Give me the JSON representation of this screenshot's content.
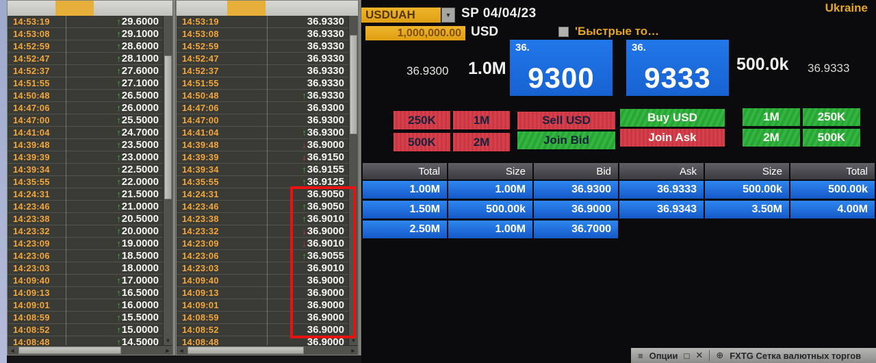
{
  "icons": {
    "dropdown": "▼",
    "arrow_up": "↑",
    "arrow_down": "↓",
    "scroll_left": "◄",
    "scroll_right": "►",
    "scroll_down": "▼",
    "menu": "≡",
    "maximize": "□",
    "close": "✕",
    "move": "⊕"
  },
  "colors": {
    "amber": "#e7a71c",
    "quote_blue": "#1c6ede",
    "depth_blue": "#1d74e4",
    "button_red": "#d5404c",
    "button_green": "#2fb13c",
    "annotation_red": "#e81212",
    "panel_bg": "#3b3b35",
    "time_amber": "#f2a53a"
  },
  "left_panel": {
    "rows": [
      {
        "t": "14:53:19",
        "v": "29.6000",
        "d": "up"
      },
      {
        "t": "14:53:08",
        "v": "29.1000",
        "d": "up"
      },
      {
        "t": "14:52:59",
        "v": "28.6000",
        "d": "up"
      },
      {
        "t": "14:52:47",
        "v": "28.1000",
        "d": "up"
      },
      {
        "t": "14:52:37",
        "v": "27.6000",
        "d": "up"
      },
      {
        "t": "14:51:55",
        "v": "27.1000",
        "d": "up"
      },
      {
        "t": "14:50:48",
        "v": "26.5000",
        "d": "up"
      },
      {
        "t": "14:47:06",
        "v": "26.0000",
        "d": "up"
      },
      {
        "t": "14:47:00",
        "v": "25.5000",
        "d": "up"
      },
      {
        "t": "14:41:04",
        "v": "24.7000",
        "d": "up"
      },
      {
        "t": "14:39:48",
        "v": "23.5000",
        "d": "up"
      },
      {
        "t": "14:39:39",
        "v": "23.0000",
        "d": "up"
      },
      {
        "t": "14:39:34",
        "v": "22.5000",
        "d": "up"
      },
      {
        "t": "14:35:55",
        "v": "22.0000",
        "d": "up"
      },
      {
        "t": "14:24:31",
        "v": "21.5000",
        "d": "up"
      },
      {
        "t": "14:23:46",
        "v": "21.0000",
        "d": "up"
      },
      {
        "t": "14:23:38",
        "v": "20.5000",
        "d": "up"
      },
      {
        "t": "14:23:32",
        "v": "20.0000",
        "d": "up"
      },
      {
        "t": "14:23:09",
        "v": "19.0000",
        "d": "up"
      },
      {
        "t": "14:23:06",
        "v": "18.5000",
        "d": "up"
      },
      {
        "t": "14:23:03",
        "v": "18.0000",
        "d": "none"
      },
      {
        "t": "14:09:40",
        "v": "17.0000",
        "d": "up"
      },
      {
        "t": "14:09:13",
        "v": "16.5000",
        "d": "up"
      },
      {
        "t": "14:09:01",
        "v": "16.0000",
        "d": "up"
      },
      {
        "t": "14:08:59",
        "v": "15.5000",
        "d": "up"
      },
      {
        "t": "14:08:52",
        "v": "15.0000",
        "d": "up"
      },
      {
        "t": "14:08:48",
        "v": "14.5000",
        "d": "up"
      }
    ]
  },
  "middle_panel": {
    "rows": [
      {
        "t": "14:53:19",
        "v": "36.9330",
        "d": "none"
      },
      {
        "t": "14:53:08",
        "v": "36.9330",
        "d": "none"
      },
      {
        "t": "14:52:59",
        "v": "36.9330",
        "d": "none"
      },
      {
        "t": "14:52:47",
        "v": "36.9330",
        "d": "none"
      },
      {
        "t": "14:52:37",
        "v": "36.9330",
        "d": "none"
      },
      {
        "t": "14:51:55",
        "v": "36.9330",
        "d": "none"
      },
      {
        "t": "14:50:48",
        "v": "36.9330",
        "d": "up"
      },
      {
        "t": "14:47:06",
        "v": "36.9300",
        "d": "none"
      },
      {
        "t": "14:47:00",
        "v": "36.9300",
        "d": "none"
      },
      {
        "t": "14:41:04",
        "v": "36.9300",
        "d": "up"
      },
      {
        "t": "14:39:48",
        "v": "36.9000",
        "d": "down"
      },
      {
        "t": "14:39:39",
        "v": "36.9150",
        "d": "down"
      },
      {
        "t": "14:39:34",
        "v": "36.9155",
        "d": "up"
      },
      {
        "t": "14:35:55",
        "v": "36.9125",
        "d": "up"
      },
      {
        "t": "14:24:31",
        "v": "36.9050",
        "d": "none"
      },
      {
        "t": "14:23:46",
        "v": "36.9050",
        "d": "up"
      },
      {
        "t": "14:23:38",
        "v": "36.9010",
        "d": "up"
      },
      {
        "t": "14:23:32",
        "v": "36.9000",
        "d": "down"
      },
      {
        "t": "14:23:09",
        "v": "36.9010",
        "d": "down"
      },
      {
        "t": "14:23:06",
        "v": "36.9055",
        "d": "up"
      },
      {
        "t": "14:23:03",
        "v": "36.9010",
        "d": "none"
      },
      {
        "t": "14:09:40",
        "v": "36.9000",
        "d": "none"
      },
      {
        "t": "14:09:13",
        "v": "36.9000",
        "d": "none"
      },
      {
        "t": "14:09:01",
        "v": "36.9000",
        "d": "none"
      },
      {
        "t": "14:08:59",
        "v": "36.9000",
        "d": "none"
      },
      {
        "t": "14:08:52",
        "v": "36.9000",
        "d": "none"
      },
      {
        "t": "14:08:48",
        "v": "36.9000",
        "d": "none"
      }
    ],
    "annotation": {
      "first_row_index": 14,
      "last_row_index": 25
    }
  },
  "trade_panel": {
    "ticker": "USDUAH",
    "tenor_date": "SP 04/04/23",
    "amount": "1,000,000.00",
    "currency": "USD",
    "quick_trade_label": "'Быстрые то…",
    "region": "Ukraine",
    "bid": {
      "price_small": "36.9300",
      "size": "1.0M",
      "big_prefix": "36.",
      "big_digits": "9300"
    },
    "ask": {
      "price_small": "36.9333",
      "size": "500.0k",
      "big_prefix": "36.",
      "big_digits": "9333"
    },
    "sell_sizes": [
      "250K",
      "1M",
      "500K",
      "2M"
    ],
    "buy_sizes": [
      "1M",
      "250K",
      "2M",
      "500K"
    ],
    "actions": {
      "sell": "Sell USD",
      "join_bid": "Join Bid",
      "buy": "Buy USD",
      "join_ask": "Join Ask"
    },
    "depth": {
      "headers": [
        "Total",
        "Size",
        "Bid",
        "Ask",
        "Size",
        "Total"
      ],
      "bid_rows": [
        [
          "1.00M",
          "1.00M",
          "36.9300"
        ],
        [
          "1.50M",
          "500.00k",
          "36.9000"
        ],
        [
          "2.50M",
          "1.00M",
          "36.7000"
        ]
      ],
      "ask_rows": [
        [
          "36.9333",
          "500.00k",
          "500.00k"
        ],
        [
          "36.9343",
          "3.50M",
          "4.00M"
        ]
      ]
    }
  },
  "status_bar": {
    "options_label": "Опции",
    "grid_title": "FXTG Сетка валютных торгов"
  }
}
